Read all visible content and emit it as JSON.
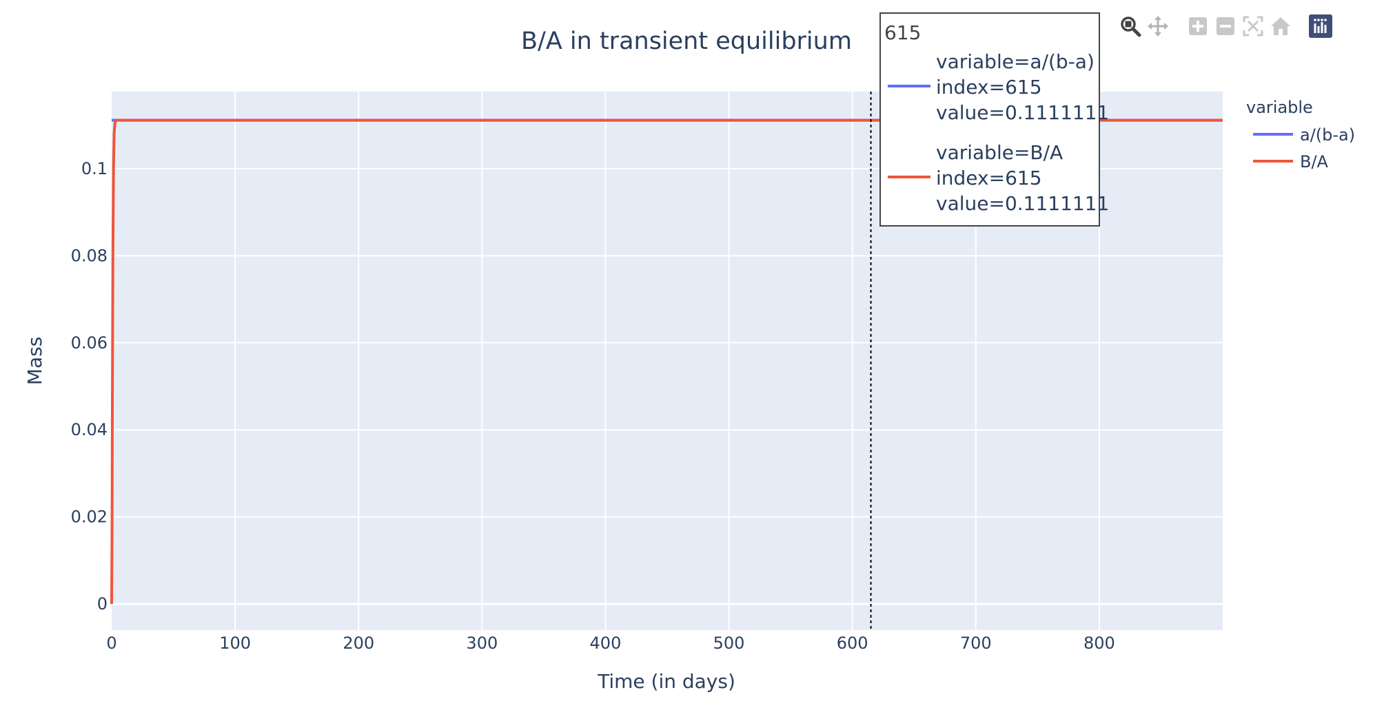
{
  "chart_data": {
    "type": "line",
    "title": "B/A in transient equilibrium",
    "xlabel": "Time (in days)",
    "ylabel": "Mass",
    "xlim": [
      0,
      900
    ],
    "ylim": [
      -0.006,
      0.1177
    ],
    "xticks": [
      0,
      100,
      200,
      300,
      400,
      500,
      600,
      700,
      800
    ],
    "xtick_labels": [
      "0",
      "100",
      "200",
      "300",
      "400",
      "500",
      "600",
      "700",
      "800"
    ],
    "yticks": [
      0,
      0.02,
      0.04,
      0.06,
      0.08,
      0.1
    ],
    "ytick_labels": [
      "0",
      "0.02",
      "0.04",
      "0.06",
      "0.08",
      "0.1"
    ],
    "grid": true,
    "legend_title": "variable",
    "legend_position": "right",
    "series": [
      {
        "name": "a/(b-a)",
        "color": "#636efa",
        "x": [
          0,
          900
        ],
        "y": [
          0.1111111,
          0.1111111
        ]
      },
      {
        "name": "B/A",
        "color": "#ef553b",
        "x": [
          0,
          0.3,
          0.6,
          1,
          1.5,
          2,
          2.5,
          3,
          4,
          5,
          900
        ],
        "y": [
          0,
          0.016,
          0.048,
          0.08,
          0.1,
          0.108,
          0.11,
          0.1109,
          0.1111,
          0.1111111,
          0.1111111
        ]
      }
    ],
    "hover": {
      "x_value": 615,
      "header": "615",
      "entries": [
        {
          "color": "#636efa",
          "lines": [
            "variable=a/(b-a)",
            "index=615",
            "value=0.1111111"
          ]
        },
        {
          "color": "#ef553b",
          "lines": [
            "variable=B/A",
            "index=615",
            "value=0.1111111"
          ]
        }
      ]
    }
  },
  "modebar": {
    "icons": [
      "zoom-icon",
      "pan-icon",
      "zoom-in-icon",
      "zoom-out-icon",
      "autoscale-icon",
      "reset-axes-icon",
      "plotly-logo-icon"
    ]
  }
}
